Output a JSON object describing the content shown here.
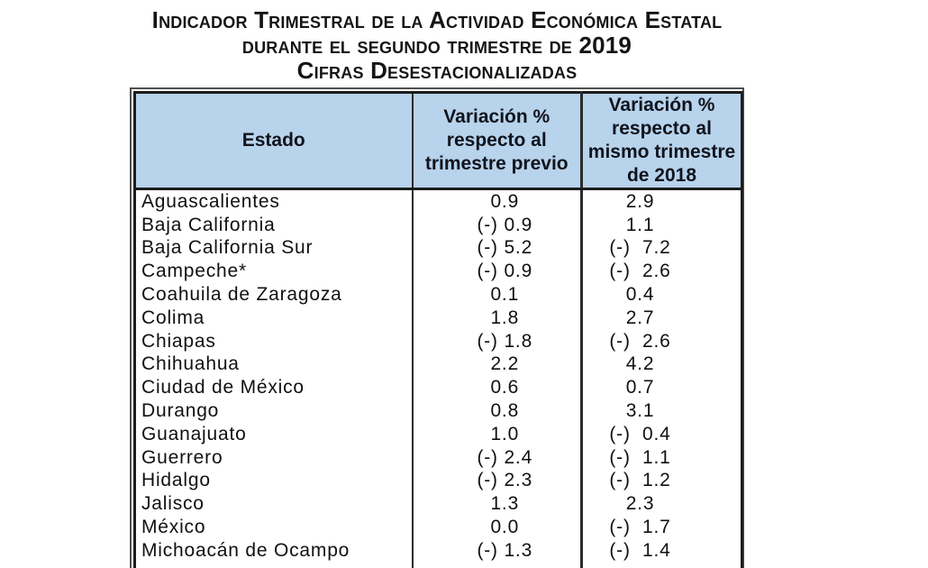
{
  "title": {
    "line1": "Indicador Trimestral de la Actividad Económica Estatal",
    "line2_prefix": "durante el segundo trimestre de",
    "line2_year": "2019",
    "line3": "Cifras Desestacionalizadas"
  },
  "table": {
    "headers": {
      "estado": "Estado",
      "col2": "Variación % respecto al trimestre previo",
      "col3": "Variación % respecto al mismo trimestre de 2018"
    },
    "negative_notation": "(-)"
  },
  "colors": {
    "header_fill": "#b8d3ec",
    "border": "#1c1c1c",
    "text": "#141414"
  },
  "chart_data": {
    "type": "table",
    "title": "Indicador Trimestral de la Actividad Económica Estatal durante el segundo trimestre de 2019 — Cifras Desestacionalizadas",
    "columns": [
      "Estado",
      "Variación % respecto al trimestre previo",
      "Variación % respecto al mismo trimestre de 2018"
    ],
    "rows": [
      {
        "estado": "Aguascalientes",
        "var_pct_trimestre_previo": 0.9,
        "var_pct_mismo_trimestre_2018": 2.9
      },
      {
        "estado": "Baja California",
        "var_pct_trimestre_previo": -0.9,
        "var_pct_mismo_trimestre_2018": 1.1
      },
      {
        "estado": "Baja California Sur",
        "var_pct_trimestre_previo": -5.2,
        "var_pct_mismo_trimestre_2018": -7.2
      },
      {
        "estado": "Campeche*",
        "var_pct_trimestre_previo": -0.9,
        "var_pct_mismo_trimestre_2018": -2.6
      },
      {
        "estado": "Coahuila de Zaragoza",
        "var_pct_trimestre_previo": 0.1,
        "var_pct_mismo_trimestre_2018": 0.4
      },
      {
        "estado": "Colima",
        "var_pct_trimestre_previo": 1.8,
        "var_pct_mismo_trimestre_2018": 2.7
      },
      {
        "estado": "Chiapas",
        "var_pct_trimestre_previo": -1.8,
        "var_pct_mismo_trimestre_2018": -2.6
      },
      {
        "estado": "Chihuahua",
        "var_pct_trimestre_previo": 2.2,
        "var_pct_mismo_trimestre_2018": 4.2
      },
      {
        "estado": "Ciudad de México",
        "var_pct_trimestre_previo": 0.6,
        "var_pct_mismo_trimestre_2018": 0.7
      },
      {
        "estado": "Durango",
        "var_pct_trimestre_previo": 0.8,
        "var_pct_mismo_trimestre_2018": 3.1
      },
      {
        "estado": "Guanajuato",
        "var_pct_trimestre_previo": 1.0,
        "var_pct_mismo_trimestre_2018": -0.4
      },
      {
        "estado": "Guerrero",
        "var_pct_trimestre_previo": -2.4,
        "var_pct_mismo_trimestre_2018": -1.1
      },
      {
        "estado": "Hidalgo",
        "var_pct_trimestre_previo": -2.3,
        "var_pct_mismo_trimestre_2018": -1.2
      },
      {
        "estado": "Jalisco",
        "var_pct_trimestre_previo": 1.3,
        "var_pct_mismo_trimestre_2018": 2.3
      },
      {
        "estado": "México",
        "var_pct_trimestre_previo": 0.0,
        "var_pct_mismo_trimestre_2018": -1.7
      },
      {
        "estado": "Michoacán de Ocampo",
        "var_pct_trimestre_previo": -1.3,
        "var_pct_mismo_trimestre_2018": -1.4
      }
    ]
  }
}
